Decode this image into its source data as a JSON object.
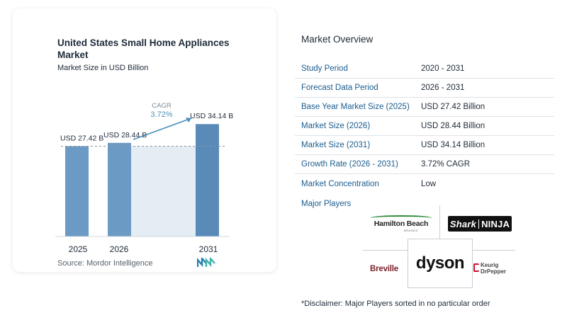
{
  "chart_data": {
    "type": "bar",
    "title": "United States Small Home Appliances Market",
    "subtitle": "Market Size in USD Billion",
    "categories": [
      "2025",
      "2026",
      "2031"
    ],
    "values": [
      27.42,
      28.44,
      34.14
    ],
    "data_labels": [
      "USD 27.42 B",
      "USD 28.44 B",
      "USD 34.14 B"
    ],
    "cagr_label": "CAGR",
    "cagr_value": "3.72%",
    "source": "Source:  Mordor Intelligence",
    "colors": {
      "bar": "#6b9ac4",
      "bar_highlight": "#5a8ab8",
      "shade": "#e4ecf4",
      "accent": "#4a90b8"
    }
  },
  "overview": {
    "title": "Market Overview",
    "rows": [
      {
        "label": "Study Period",
        "value": "2020 - 2031"
      },
      {
        "label": "Forecast Data Period",
        "value": "2026 - 2031"
      },
      {
        "label": "Base Year Market Size (2025)",
        "value": "USD 27.42 Billion"
      },
      {
        "label": "Market Size (2026)",
        "value": "USD 28.44 Billion"
      },
      {
        "label": "Market Size (2031)",
        "value": "USD 34.14 Billion"
      },
      {
        "label": "Growth Rate (2026 - 2031)",
        "value": "3.72% CAGR"
      },
      {
        "label": "Market Concentration",
        "value": "Low"
      }
    ]
  },
  "players": {
    "title": "Major Players",
    "logos": {
      "hamilton_beach": "Hamilton Beach",
      "hamilton_beach_sub": "BRANDS",
      "shark": "Shark",
      "ninja": "NINJA",
      "dyson": "dyson",
      "breville": "Breville",
      "keurig": "Keurig",
      "drpepper": "DrPepper"
    }
  },
  "disclaimer": "*Disclaimer: Major Players sorted in no particular order"
}
